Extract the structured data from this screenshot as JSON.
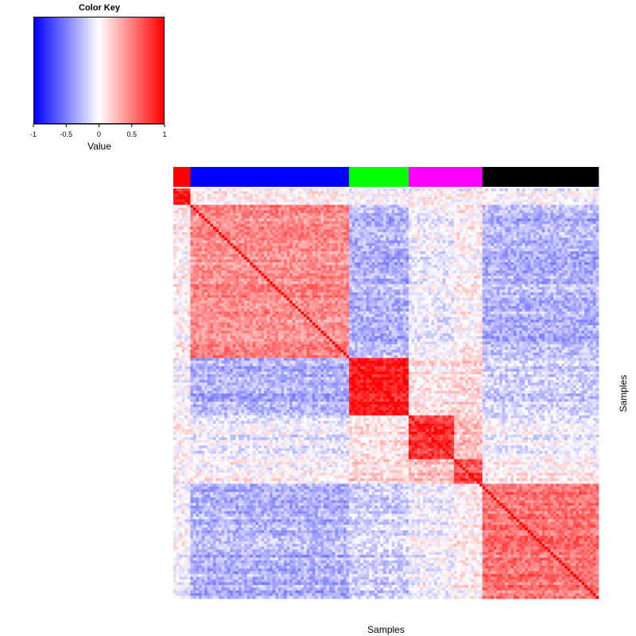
{
  "chart_data": {
    "type": "heatmap",
    "xlabel": "Samples",
    "ylabel": "Samples",
    "color_key": {
      "title": "Color Key",
      "xlabel": "Value",
      "range": [
        -1,
        1
      ],
      "ticks": [
        "-1",
        "-0.5",
        "0",
        "0.5",
        "1"
      ],
      "colors": [
        "#0000ff",
        "#ffffff",
        "#ff0000"
      ]
    },
    "groups": [
      {
        "color": "#ff0000",
        "size": 6
      },
      {
        "color": "#0000ff",
        "size": 56
      },
      {
        "color": "#00ff00",
        "size": 21
      },
      {
        "color": "#ff00ff",
        "size": 26
      },
      {
        "color": "#000000",
        "size": 41
      }
    ],
    "row_blocks": [
      6,
      56,
      21,
      16,
      9,
      42
    ],
    "block_values": [
      [
        0.85,
        0.05,
        -0.02,
        0.04,
        0.02,
        -0.03
      ],
      [
        0.05,
        0.45,
        -0.3,
        -0.07,
        0.03,
        -0.3
      ],
      [
        -0.02,
        -0.3,
        0.9,
        0.1,
        0.15,
        -0.18
      ],
      [
        0.04,
        -0.07,
        0.1,
        0.8,
        0.25,
        -0.05
      ],
      [
        0.02,
        0.03,
        0.15,
        0.25,
        0.7,
        0.07
      ],
      [
        -0.03,
        -0.3,
        -0.18,
        -0.05,
        0.07,
        0.55
      ]
    ],
    "diagonal_value": 1
  }
}
